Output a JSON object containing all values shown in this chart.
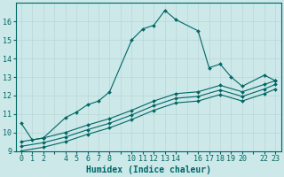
{
  "xlabel": "Humidex (Indice chaleur)",
  "ylabel": "",
  "bg_color": "#cce8e8",
  "grid_color": "#b8d8d8",
  "line_color": "#006666",
  "xlim": [
    -0.5,
    23.5
  ],
  "ylim": [
    9,
    17
  ],
  "yticks": [
    9,
    10,
    11,
    12,
    13,
    14,
    15,
    16
  ],
  "xtick_labels": [
    "0",
    "1",
    "2",
    "",
    "4",
    "5",
    "6",
    "7",
    "8",
    "",
    "10",
    "11",
    "12",
    "13",
    "14",
    "",
    "16",
    "17",
    "18",
    "19",
    "20",
    "",
    "22",
    "23"
  ],
  "xtick_positions": [
    0,
    1,
    2,
    3,
    4,
    5,
    6,
    7,
    8,
    9,
    10,
    11,
    12,
    13,
    14,
    15,
    16,
    17,
    18,
    19,
    20,
    21,
    22,
    23
  ],
  "line1_x": [
    0,
    1,
    2,
    4,
    5,
    6,
    7,
    8,
    10,
    11,
    12,
    13,
    14,
    16,
    17,
    18,
    19,
    20,
    22,
    23
  ],
  "line1_y": [
    10.5,
    9.6,
    9.7,
    10.8,
    11.1,
    11.5,
    11.7,
    12.2,
    15.0,
    15.6,
    15.8,
    16.6,
    16.1,
    15.5,
    13.5,
    13.7,
    13.0,
    12.5,
    13.1,
    12.8
  ],
  "line2_x": [
    0,
    2,
    4,
    6,
    8,
    10,
    12,
    14,
    16,
    18,
    20,
    22,
    23
  ],
  "line2_y": [
    9.5,
    9.7,
    10.0,
    10.4,
    10.75,
    11.2,
    11.7,
    12.1,
    12.2,
    12.55,
    12.2,
    12.6,
    12.8
  ],
  "line3_x": [
    0,
    2,
    4,
    6,
    8,
    10,
    12,
    14,
    16,
    18,
    20,
    22,
    23
  ],
  "line3_y": [
    9.25,
    9.45,
    9.75,
    10.15,
    10.5,
    10.95,
    11.45,
    11.85,
    11.95,
    12.3,
    11.95,
    12.35,
    12.6
  ],
  "line4_x": [
    0,
    2,
    4,
    6,
    8,
    10,
    12,
    14,
    16,
    18,
    20,
    22,
    23
  ],
  "line4_y": [
    9.0,
    9.2,
    9.5,
    9.9,
    10.25,
    10.7,
    11.2,
    11.6,
    11.7,
    12.05,
    11.7,
    12.1,
    12.35
  ],
  "marker": "D",
  "markersize": 2.0,
  "linewidth": 0.8,
  "label_fontsize": 7,
  "tick_fontsize": 6
}
